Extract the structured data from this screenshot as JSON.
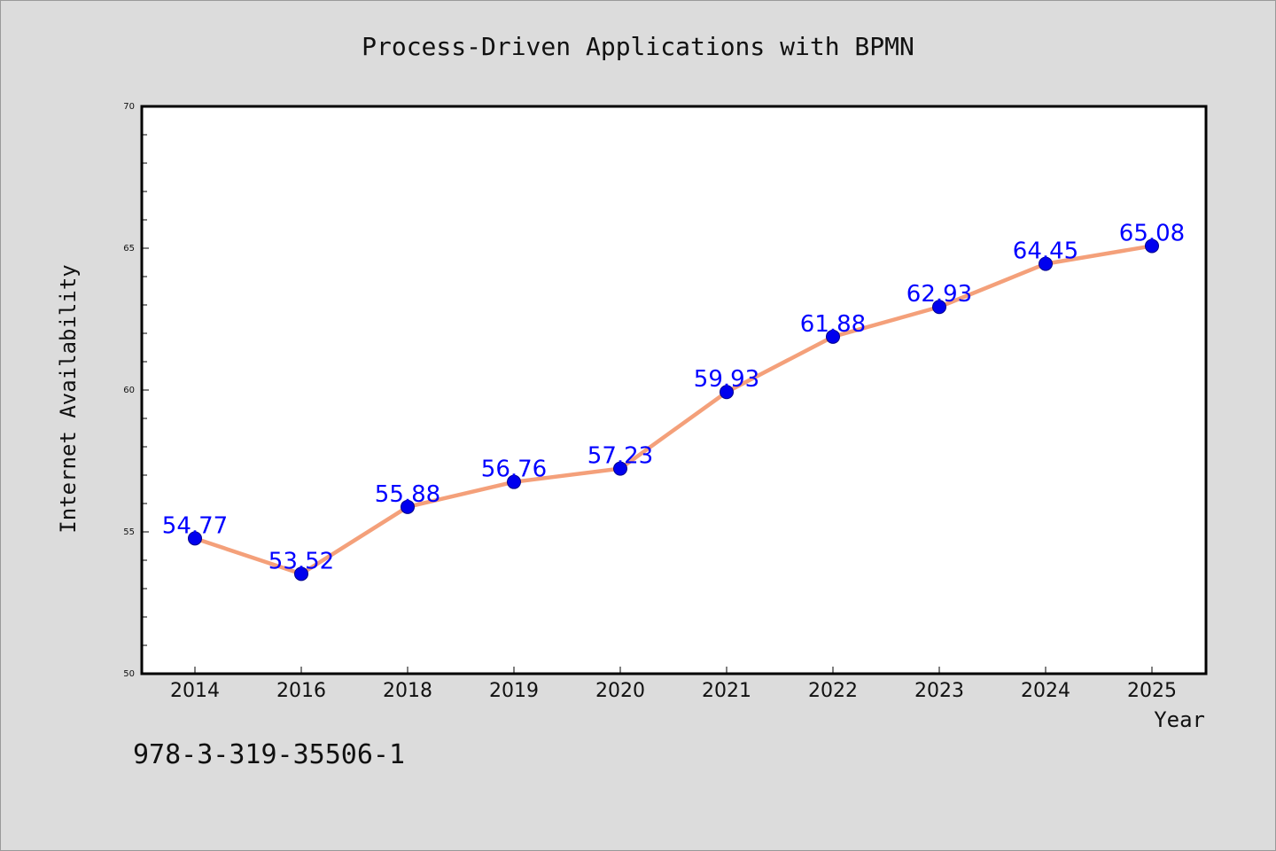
{
  "chart_data": {
    "type": "line",
    "title": "Process-Driven Applications with BPMN",
    "xlabel": "Year",
    "ylabel": "Internet Availability",
    "categories": [
      "2014",
      "2016",
      "2018",
      "2019",
      "2020",
      "2021",
      "2022",
      "2023",
      "2024",
      "2025"
    ],
    "series": [
      {
        "values": [
          54.77,
          53.52,
          55.88,
          56.76,
          57.23,
          59.93,
          61.88,
          62.93,
          64.45,
          65.08
        ],
        "line_color": "#f4a07a",
        "marker_color": "#0000ee",
        "label_color": "#0000ff"
      }
    ],
    "ylim": [
      50,
      70
    ],
    "yticks": [
      "50",
      "55",
      "60",
      "65",
      "70"
    ],
    "grid": false,
    "data_labels": [
      "54.77",
      "53.52",
      "55.88",
      "56.76",
      "57.23",
      "59.93",
      "61.88",
      "62.93",
      "64.45",
      "65.08"
    ]
  },
  "footer": {
    "isbn": "978-3-319-35506-1"
  }
}
